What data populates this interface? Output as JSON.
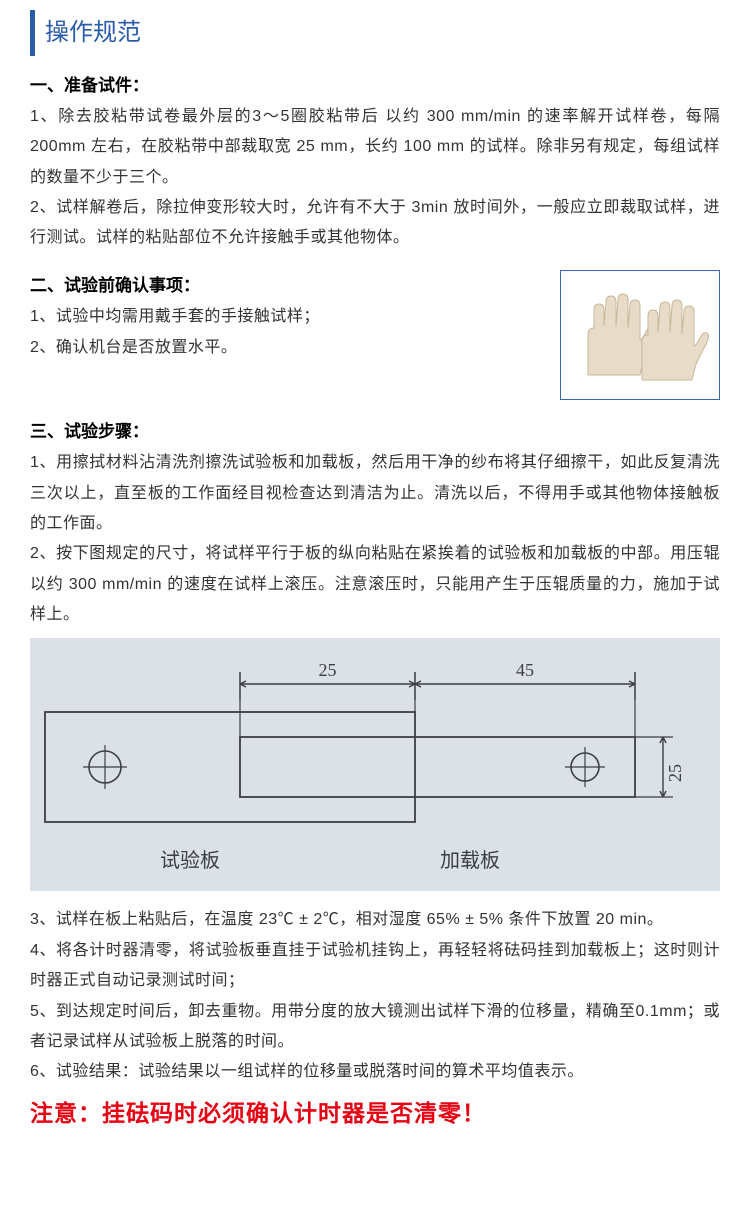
{
  "title": "操作规范",
  "section1": {
    "head": "一、准备试件：",
    "p1": "1、除去胶粘带试卷最外层的3～5圈胶粘带后 以约 300 mm/min 的速率解开试样卷，每隔 200mm 左右，在胶粘带中部裁取宽 25 mm，长约 100 mm 的试样。除非另有规定，每组试样的数量不少于三个。",
    "p2": "2、试样解卷后，除拉伸变形较大时，允许有不大于 3min 放时间外，一般应立即裁取试样，进行测试。试样的粘贴部位不允许接触手或其他物体。"
  },
  "section2": {
    "head": "二、试验前确认事项：",
    "p1": "1、试验中均需用戴手套的手接触试样；",
    "p2": "2、确认机台是否放置水平。",
    "image_alt": "gloves-image"
  },
  "section3": {
    "head": "三、试验步骤：",
    "p1": "1、用擦拭材料沾清洗剂擦洗试验板和加载板，然后用干净的纱布将其仔细擦干，如此反复清洗三次以上，直至板的工作面经目视检查达到清洁为止。清洗以后，不得用手或其他物体接触板的工作面。",
    "p2": "2、按下图规定的尺寸，将试样平行于板的纵向粘贴在紧挨着的试验板和加载板的中部。用压辊以约 300 mm/min 的速度在试样上滚压。注意滚压时，只能用产生于压辊质量的力，施加于试样上。",
    "p3": "3、试样在板上粘贴后，在温度 23℃ ± 2℃，相对湿度 65% ± 5% 条件下放置 20 min。",
    "p4": "4、将各计时器清零，将试验板垂直挂于试验机挂钩上，再轻轻将砝码挂到加载板上；这时则计时器正式自动记录测试时间；",
    "p5": "5、到达规定时间后，卸去重物。用带分度的放大镜测出试样下滑的位移量，精确至0.1mm；或者记录试样从试验板上脱落的时间。",
    "p6": "6、试验结果：试验结果以一组试样的位移量或脱落时间的算术平均值表示。"
  },
  "diagram": {
    "dim_left": "25",
    "dim_right": "45",
    "dim_height": "25",
    "label_left": "试验板",
    "label_right": "加载板",
    "bg_color": "#dbe1e6",
    "line_color": "#3a3f44",
    "label_fontsize": 20,
    "dim_fontsize": 18
  },
  "warning": "注意：挂砝码时必须确认计时器是否清零！"
}
